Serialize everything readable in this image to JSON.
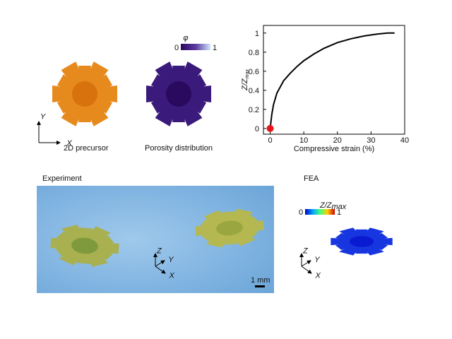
{
  "chart_data": {
    "type": "line",
    "xlabel": "Compressive strain (%)",
    "ylabel": "Z/Z",
    "ylabel_sub": "max",
    "x": [
      0,
      0.5,
      1,
      2,
      4,
      6,
      8,
      10,
      13,
      16,
      20,
      24,
      28,
      32,
      35,
      37
    ],
    "series": [
      {
        "color": "#000000",
        "values": [
          0,
          0.15,
          0.25,
          0.37,
          0.5,
          0.58,
          0.65,
          0.71,
          0.78,
          0.84,
          0.9,
          0.94,
          0.97,
          0.99,
          1.0,
          1.0
        ]
      },
      {
        "color": "#e8141b",
        "x": [
          0
        ],
        "values": [
          0
        ],
        "marker": "point"
      }
    ],
    "xlim": [
      -2,
      40
    ],
    "ylim": [
      -0.06,
      1.08
    ],
    "xticks": [
      0,
      10,
      20,
      30,
      40
    ],
    "yticks": [
      0,
      0.2,
      0.4,
      0.6,
      0.8,
      1
    ]
  },
  "labels": {
    "precursor": "2D precursor",
    "porosity": "Porosity distribution",
    "phi": "φ",
    "phi_min": "0",
    "phi_max": "1",
    "experiment": "Experiment",
    "fea": "FEA",
    "scale": "1 mm",
    "z_main": "Z/Z",
    "z_sub": "max",
    "z_min": "0",
    "z_max": "1",
    "axis_x": "X",
    "axis_y": "Y",
    "axis_z": "Z"
  }
}
